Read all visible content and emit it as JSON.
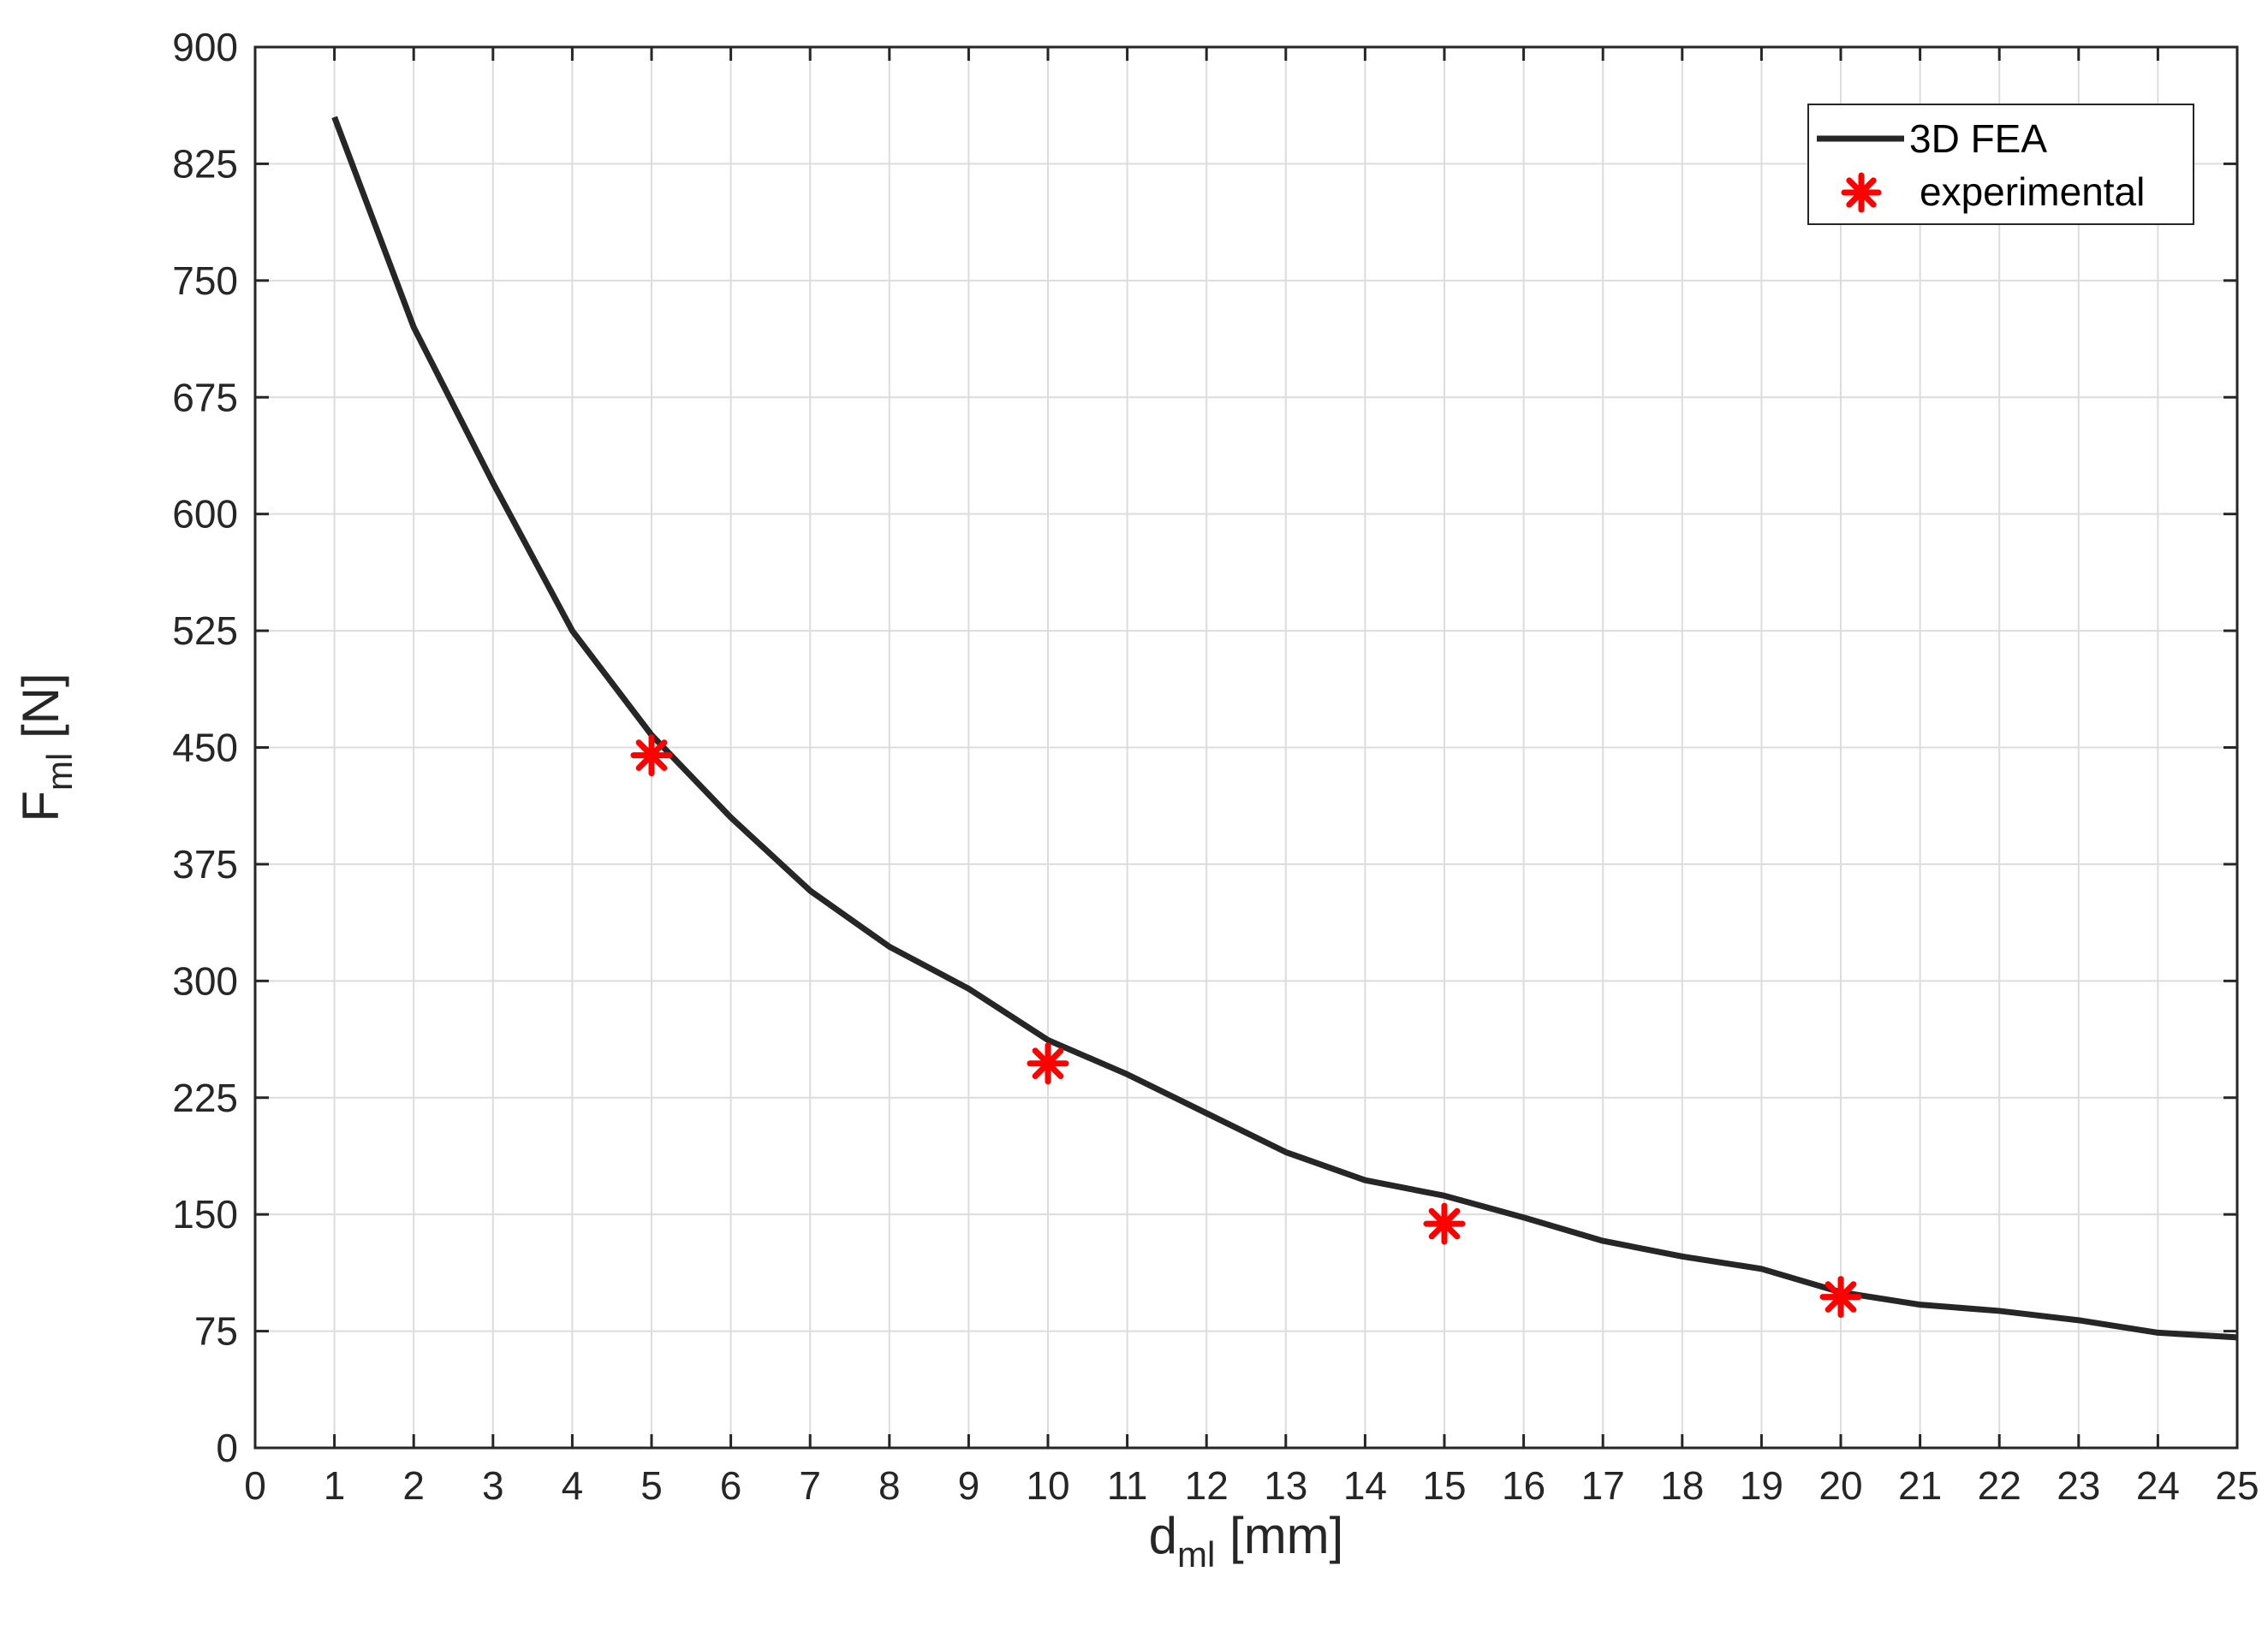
{
  "chart_data": {
    "type": "line",
    "xlabel": {
      "main": "d",
      "sub": "ml",
      "unit": " [mm]"
    },
    "ylabel": {
      "main": "F",
      "sub": "ml",
      "unit": " [N]"
    },
    "xlim": [
      0,
      25
    ],
    "ylim": [
      0,
      900
    ],
    "xticks": [
      0,
      1,
      2,
      3,
      4,
      5,
      6,
      7,
      8,
      9,
      10,
      11,
      12,
      13,
      14,
      15,
      16,
      17,
      18,
      19,
      20,
      21,
      22,
      23,
      24,
      25
    ],
    "yticks": [
      0,
      75,
      150,
      225,
      300,
      375,
      450,
      525,
      600,
      675,
      750,
      825,
      900
    ],
    "grid": true,
    "legend_position": "top-right",
    "series": [
      {
        "name": "3D FEA",
        "kind": "line",
        "color": "#262626",
        "x": [
          1,
          2,
          3,
          4,
          5,
          6,
          7,
          8,
          9,
          10,
          11,
          12,
          13,
          14,
          15,
          16,
          17,
          18,
          19,
          20,
          21,
          22,
          23,
          24,
          25
        ],
        "y": [
          855,
          720,
          620,
          525,
          458,
          405,
          358,
          322,
          295,
          262,
          240,
          215,
          190,
          172,
          162,
          148,
          133,
          123,
          115,
          100,
          92,
          88,
          82,
          74,
          71
        ]
      },
      {
        "name": "experimental",
        "kind": "marker",
        "marker": "asterisk",
        "color": "#ff0000",
        "x": [
          5,
          10,
          15,
          20
        ],
        "y": [
          445,
          247,
          144,
          97
        ]
      }
    ]
  }
}
